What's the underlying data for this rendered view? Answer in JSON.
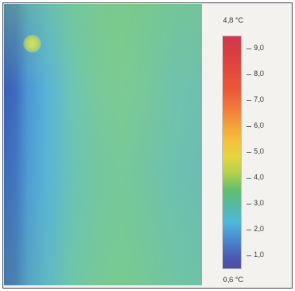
{
  "scale": {
    "max_label": "4,8 °C",
    "min_label": "0,6 °C",
    "ticks": [
      "9,0",
      "8,0",
      "7,0",
      "6,0",
      "5,0",
      "4,0",
      "3,0",
      "2,0",
      "1,0"
    ]
  },
  "colors": {
    "cold": "#3b5fb4",
    "mid": "#7ccb92",
    "warm": "#e5d63e",
    "hot": "#d1364c"
  }
}
